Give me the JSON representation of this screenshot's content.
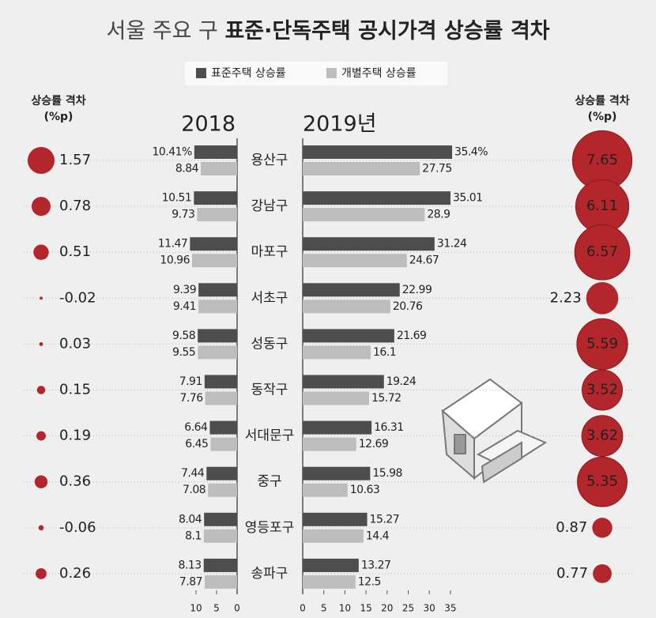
{
  "title": [
    "서울 주요 구",
    "표준·단독주택 공시가격 상승률 격차"
  ],
  "chart_data": [
    {
      "type": "bar",
      "orientation": "horizontal",
      "reversed": true,
      "title": "2018",
      "categories": [
        "용산구",
        "강남구",
        "마포구",
        "서초구",
        "성동구",
        "동작구",
        "서대문구",
        "중구",
        "영등포구",
        "송파구"
      ],
      "series": [
        {
          "name": "표준주택 상승률",
          "color": "#4d4d4d",
          "values": [
            10.41,
            10.51,
            11.47,
            9.39,
            9.58,
            7.91,
            6.64,
            7.44,
            8.04,
            8.13
          ],
          "value_labels": [
            "10.41%",
            "10.51",
            "11.47",
            "9.39",
            "9.58",
            "7.91",
            "6.64",
            "7.44",
            "8.04",
            "8.13"
          ]
        },
        {
          "name": "개별주택 상승률",
          "color": "#bdbdbd",
          "values": [
            8.84,
            9.73,
            10.96,
            9.41,
            9.55,
            7.76,
            6.45,
            7.08,
            8.1,
            7.87
          ]
        }
      ],
      "xlim": [
        0,
        12
      ],
      "xticks": [
        0,
        5,
        10
      ]
    },
    {
      "type": "bar",
      "orientation": "horizontal",
      "reversed": false,
      "title": "2019년",
      "series": [
        {
          "name": "표준주택 상승률",
          "color": "#4d4d4d",
          "values": [
            35.4,
            35.01,
            31.24,
            22.99,
            21.69,
            19.24,
            16.31,
            15.98,
            15.27,
            13.27
          ],
          "value_labels": [
            "35.4%",
            "35.01",
            "31.24",
            "22.99",
            "21.69",
            "19.24",
            "16.31",
            "15.98",
            "15.27",
            "13.27"
          ]
        },
        {
          "name": "개별주택 상승률",
          "color": "#bdbdbd",
          "values": [
            27.75,
            28.9,
            24.67,
            20.76,
            16.1,
            15.72,
            12.69,
            10.63,
            14.4,
            12.5
          ]
        }
      ],
      "xlim": [
        0,
        40
      ],
      "xticks": [
        0,
        5,
        10,
        15,
        20,
        25,
        30,
        35
      ]
    },
    {
      "type": "bubble",
      "title": "상승률 격차 (%p)",
      "color": "#b3262b",
      "values": [
        1.57,
        0.78,
        0.51,
        -0.02,
        0.03,
        0.15,
        0.19,
        0.36,
        -0.06,
        0.26
      ]
    },
    {
      "type": "bubble",
      "title": "상승률 격차 (%p)",
      "color": "#b3262b",
      "values": [
        7.65,
        6.11,
        6.57,
        2.23,
        5.59,
        3.52,
        3.62,
        5.35,
        0.87,
        0.77
      ]
    }
  ]
}
